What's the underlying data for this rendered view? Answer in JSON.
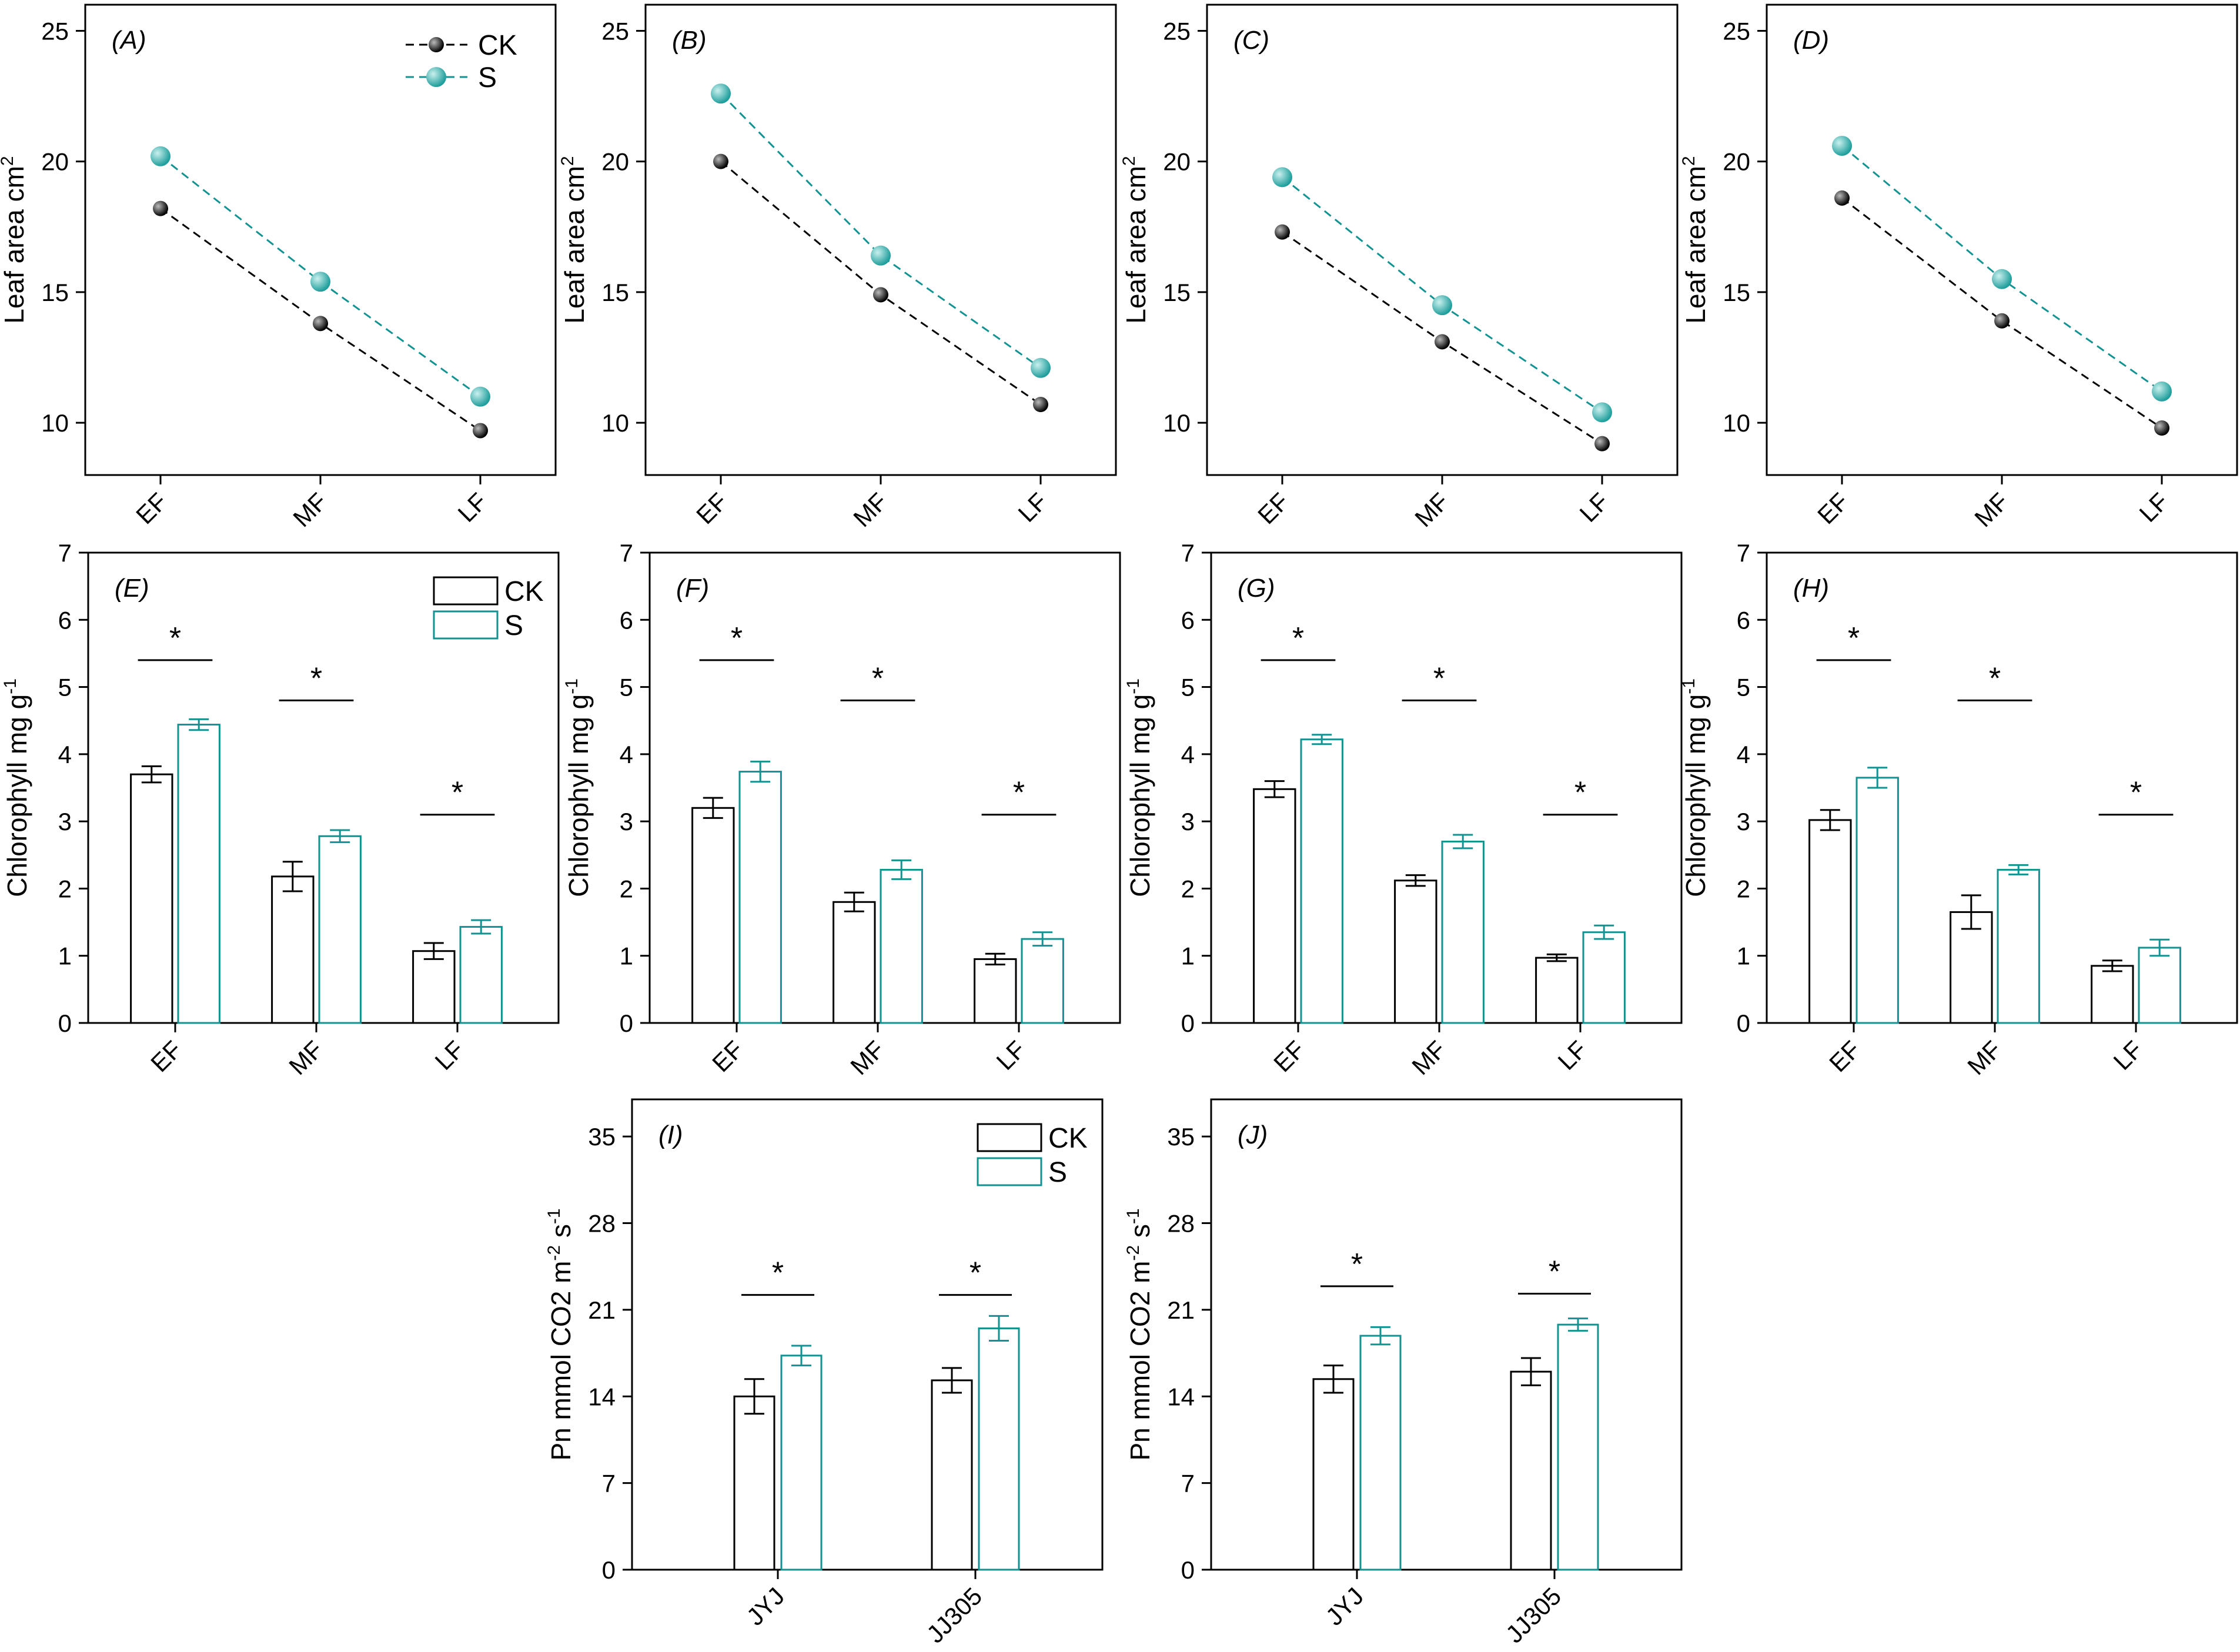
{
  "colors": {
    "ck": "#000000",
    "s": "#129392",
    "s_marker": "#1f9e9c"
  },
  "legend": {
    "ck": "CK",
    "s": "S"
  },
  "sig_marker": "*",
  "chart_data": [
    {
      "id": "A",
      "panel_label": "(A)",
      "type": "line",
      "categories": [
        "EF",
        "MF",
        "LF"
      ],
      "ylabel": "Leaf area cm",
      "ylabel_sup": "2",
      "ylim": [
        8,
        26
      ],
      "yticks": [
        10,
        15,
        20,
        25
      ],
      "series": [
        {
          "name": "CK",
          "values": [
            18.2,
            13.8,
            9.7
          ]
        },
        {
          "name": "S",
          "values": [
            20.2,
            15.4,
            11.0
          ]
        }
      ]
    },
    {
      "id": "B",
      "panel_label": "(B)",
      "type": "line",
      "categories": [
        "EF",
        "MF",
        "LF"
      ],
      "ylabel": "Leaf area cm",
      "ylabel_sup": "2",
      "ylim": [
        8,
        26
      ],
      "yticks": [
        10,
        15,
        20,
        25
      ],
      "series": [
        {
          "name": "CK",
          "values": [
            20.0,
            14.9,
            10.7
          ]
        },
        {
          "name": "S",
          "values": [
            22.6,
            16.4,
            12.1
          ]
        }
      ]
    },
    {
      "id": "C",
      "panel_label": "(C)",
      "type": "line",
      "categories": [
        "EF",
        "MF",
        "LF"
      ],
      "ylabel": "Leaf area cm",
      "ylabel_sup": "2",
      "ylim": [
        8,
        26
      ],
      "yticks": [
        10,
        15,
        20,
        25
      ],
      "series": [
        {
          "name": "CK",
          "values": [
            17.3,
            13.1,
            9.2
          ]
        },
        {
          "name": "S",
          "values": [
            19.4,
            14.5,
            10.4
          ]
        }
      ]
    },
    {
      "id": "D",
      "panel_label": "(D)",
      "type": "line",
      "categories": [
        "EF",
        "MF",
        "LF"
      ],
      "ylabel": "Leaf area cm",
      "ylabel_sup": "2",
      "ylim": [
        8,
        26
      ],
      "yticks": [
        10,
        15,
        20,
        25
      ],
      "series": [
        {
          "name": "CK",
          "values": [
            18.6,
            13.9,
            9.8
          ]
        },
        {
          "name": "S",
          "values": [
            20.6,
            15.5,
            11.2
          ]
        }
      ]
    },
    {
      "id": "E",
      "panel_label": "(E)",
      "type": "bar",
      "categories": [
        "EF",
        "MF",
        "LF"
      ],
      "ylabel": "Chlorophyll mg g",
      "ylabel_sup": "-1",
      "ylim": [
        0,
        7
      ],
      "yticks": [
        0,
        1,
        2,
        3,
        4,
        5,
        6,
        7
      ],
      "series": [
        {
          "name": "CK",
          "values": [
            3.7,
            2.18,
            1.07
          ],
          "errors": [
            0.12,
            0.22,
            0.12
          ]
        },
        {
          "name": "S",
          "values": [
            4.44,
            2.78,
            1.43
          ],
          "errors": [
            0.08,
            0.09,
            0.1
          ]
        }
      ],
      "sig_y": [
        5.4,
        4.8,
        3.1
      ]
    },
    {
      "id": "F",
      "panel_label": "(F)",
      "type": "bar",
      "categories": [
        "EF",
        "MF",
        "LF"
      ],
      "ylabel": "Chlorophyll mg g",
      "ylabel_sup": "-1",
      "ylim": [
        0,
        7
      ],
      "yticks": [
        0,
        1,
        2,
        3,
        4,
        5,
        6,
        7
      ],
      "series": [
        {
          "name": "CK",
          "values": [
            3.2,
            1.8,
            0.95
          ],
          "errors": [
            0.15,
            0.14,
            0.08
          ]
        },
        {
          "name": "S",
          "values": [
            3.74,
            2.28,
            1.25
          ],
          "errors": [
            0.15,
            0.14,
            0.1
          ]
        }
      ],
      "sig_y": [
        5.4,
        4.8,
        3.1
      ]
    },
    {
      "id": "G",
      "panel_label": "(G)",
      "type": "bar",
      "categories": [
        "EF",
        "MF",
        "LF"
      ],
      "ylabel": "Chlorophyll mg g",
      "ylabel_sup": "-1",
      "ylim": [
        0,
        7
      ],
      "yticks": [
        0,
        1,
        2,
        3,
        4,
        5,
        6,
        7
      ],
      "series": [
        {
          "name": "CK",
          "values": [
            3.48,
            2.12,
            0.97
          ],
          "errors": [
            0.12,
            0.08,
            0.05
          ]
        },
        {
          "name": "S",
          "values": [
            4.22,
            2.7,
            1.35
          ],
          "errors": [
            0.07,
            0.1,
            0.1
          ]
        }
      ],
      "sig_y": [
        5.4,
        4.8,
        3.1
      ]
    },
    {
      "id": "H",
      "panel_label": "(H)",
      "type": "bar",
      "categories": [
        "EF",
        "MF",
        "LF"
      ],
      "ylabel": "Chlorophyll mg g",
      "ylabel_sup": "-1",
      "ylim": [
        0,
        7
      ],
      "yticks": [
        0,
        1,
        2,
        3,
        4,
        5,
        6,
        7
      ],
      "series": [
        {
          "name": "CK",
          "values": [
            3.02,
            1.65,
            0.85
          ],
          "errors": [
            0.15,
            0.25,
            0.08
          ]
        },
        {
          "name": "S",
          "values": [
            3.65,
            2.28,
            1.12
          ],
          "errors": [
            0.15,
            0.07,
            0.12
          ]
        }
      ],
      "sig_y": [
        5.4,
        4.8,
        3.1
      ]
    },
    {
      "id": "I",
      "panel_label": "(I)",
      "type": "bar",
      "categories": [
        "JYJ",
        "JJ305"
      ],
      "ylabel": "Pn mmol CO2 m",
      "ylabel_sup": "-2",
      "ylabel_mid": " s",
      "ylabel_sup2": "-1",
      "ylim": [
        0,
        38
      ],
      "yticks": [
        0,
        7,
        14,
        21,
        28,
        35
      ],
      "series": [
        {
          "name": "CK",
          "values": [
            14.0,
            15.3
          ],
          "errors": [
            1.4,
            1.0
          ]
        },
        {
          "name": "S",
          "values": [
            17.3,
            19.5
          ],
          "errors": [
            0.8,
            1.0
          ]
        }
      ],
      "sig_y": [
        22.2,
        22.2
      ]
    },
    {
      "id": "J",
      "panel_label": "(J)",
      "type": "bar",
      "categories": [
        "JYJ",
        "JJ305"
      ],
      "ylabel": "Pn mmol CO2 m",
      "ylabel_sup": "-2",
      "ylabel_mid": " s",
      "ylabel_sup2": "-1",
      "ylim": [
        0,
        38
      ],
      "yticks": [
        0,
        7,
        14,
        21,
        28,
        35
      ],
      "series": [
        {
          "name": "CK",
          "values": [
            15.4,
            16.0
          ],
          "errors": [
            1.1,
            1.1
          ]
        },
        {
          "name": "S",
          "values": [
            18.9,
            19.8
          ],
          "errors": [
            0.7,
            0.5
          ]
        }
      ],
      "sig_y": [
        22.9,
        22.3
      ]
    }
  ]
}
